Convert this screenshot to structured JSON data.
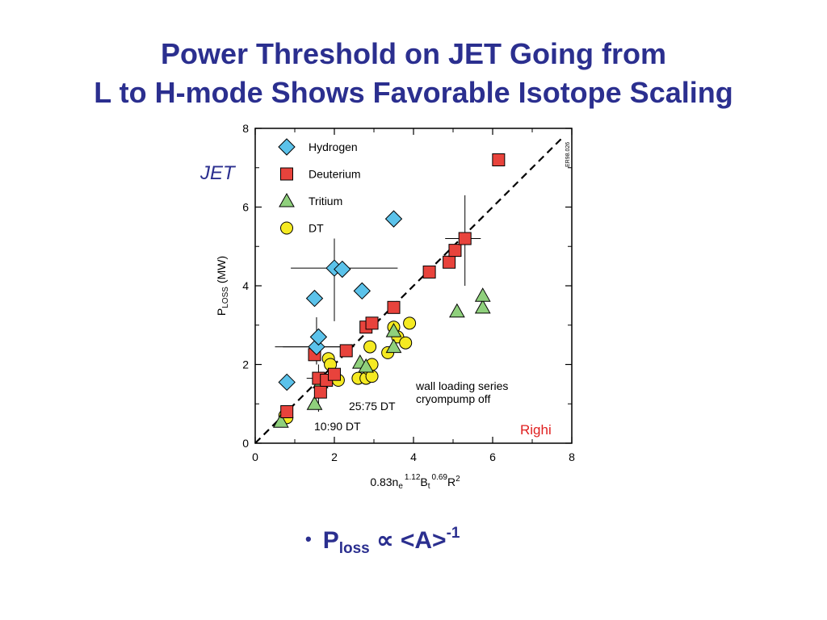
{
  "slide": {
    "title_line1": "Power Threshold on JET Going from",
    "title_line2": "L to H-mode Shows Favorable Isotope Scaling",
    "bullet": {
      "p": "P",
      "sub": "loss",
      "prop": "∝",
      "a": "<A>",
      "sup": "-1"
    }
  },
  "chart_data": {
    "type": "scatter",
    "title": "",
    "xlabel": {
      "base": "0.83n",
      "s1": "e",
      "e1": "1.12",
      "m": "B",
      "s2": "t",
      "e2": "0.69",
      "r": "R",
      "e3": "2"
    },
    "ylabel": {
      "p": "P",
      "sub": "LOSS",
      "unit": "(MW)"
    },
    "xlim": [
      0,
      8
    ],
    "ylim": [
      0,
      8
    ],
    "xticks": [
      "0",
      "2",
      "4",
      "6",
      "8"
    ],
    "yticks": [
      "0",
      "2",
      "4",
      "6",
      "8"
    ],
    "minor_ticks": [
      1,
      3,
      5,
      7
    ],
    "grid": false,
    "legend_position": "top-left",
    "reference_line": {
      "style": "dashed",
      "from": [
        0,
        0
      ],
      "to": [
        7.8,
        7.8
      ]
    },
    "series": [
      {
        "name": "Hydrogen",
        "marker": "diamond",
        "color": "#5bc2ea",
        "points": [
          [
            0.8,
            1.55
          ],
          [
            1.55,
            2.45
          ],
          [
            1.6,
            2.7
          ],
          [
            1.5,
            3.68
          ],
          [
            2.0,
            4.45
          ],
          [
            2.2,
            4.42
          ],
          [
            2.7,
            3.87
          ],
          [
            3.5,
            5.7
          ]
        ]
      },
      {
        "name": "Deuterium",
        "marker": "square",
        "color": "#e8433c",
        "points": [
          [
            0.8,
            0.8
          ],
          [
            1.5,
            2.25
          ],
          [
            1.6,
            1.65
          ],
          [
            1.65,
            1.3
          ],
          [
            1.8,
            1.6
          ],
          [
            2.0,
            1.75
          ],
          [
            2.3,
            2.35
          ],
          [
            2.8,
            2.95
          ],
          [
            2.95,
            3.05
          ],
          [
            3.5,
            3.45
          ],
          [
            4.4,
            4.35
          ],
          [
            4.9,
            4.6
          ],
          [
            5.05,
            4.9
          ],
          [
            5.3,
            5.2
          ],
          [
            6.15,
            7.2
          ]
        ]
      },
      {
        "name": "Tritium",
        "marker": "triangle",
        "color": "#8fd07c",
        "points": [
          [
            0.65,
            0.55
          ],
          [
            1.5,
            1.0
          ],
          [
            1.65,
            1.55
          ],
          [
            2.65,
            2.05
          ],
          [
            2.8,
            1.95
          ],
          [
            3.5,
            2.85
          ],
          [
            3.5,
            2.45
          ],
          [
            5.1,
            3.35
          ],
          [
            5.75,
            3.45
          ],
          [
            5.75,
            3.75
          ]
        ]
      },
      {
        "name": "DT",
        "marker": "circle",
        "color": "#f5ea22",
        "points": [
          [
            0.75,
            0.7
          ],
          [
            0.8,
            0.65
          ],
          [
            1.85,
            2.15
          ],
          [
            1.9,
            2.0
          ],
          [
            2.1,
            1.6
          ],
          [
            2.6,
            1.65
          ],
          [
            2.8,
            1.65
          ],
          [
            2.85,
            1.9
          ],
          [
            2.9,
            2.45
          ],
          [
            2.95,
            2.0
          ],
          [
            2.95,
            1.7
          ],
          [
            3.35,
            2.3
          ],
          [
            3.5,
            2.95
          ],
          [
            3.6,
            2.7
          ],
          [
            3.8,
            2.55
          ],
          [
            3.9,
            3.05
          ]
        ]
      }
    ],
    "error_bars": [
      {
        "x": 2.0,
        "y": 4.45,
        "x_range": [
          0.9,
          3.6
        ],
        "y_range": [
          3.1,
          5.2
        ]
      },
      {
        "x": 1.55,
        "y": 2.45,
        "x_range": [
          0.7,
          2.2
        ],
        "y_range": [
          2.0,
          3.2
        ]
      },
      {
        "x": 1.55,
        "y": 2.45,
        "x_range": [
          0.5,
          2.5
        ],
        "y_range": [
          2.0,
          2.7
        ]
      },
      {
        "x": 5.3,
        "y": 5.2,
        "x_range": [
          4.8,
          5.7
        ],
        "y_range": [
          4.0,
          6.3
        ]
      },
      {
        "x": 1.6,
        "y": 1.65,
        "x_range": [
          1.3,
          2.1
        ],
        "y_range": [
          0.8,
          2.0
        ]
      }
    ],
    "annotations": [
      {
        "text": "JET",
        "color": "#2b2f8f"
      },
      {
        "text": "ER98.026",
        "color": "#000000"
      },
      {
        "text": "wall loading series",
        "color": "#000000"
      },
      {
        "text": "cryompump off",
        "color": "#000000"
      },
      {
        "text": "25:75 DT",
        "color": "#000000"
      },
      {
        "text": "10:90 DT",
        "color": "#000000"
      },
      {
        "text": "Righi",
        "color": "#e01f1f"
      }
    ]
  }
}
